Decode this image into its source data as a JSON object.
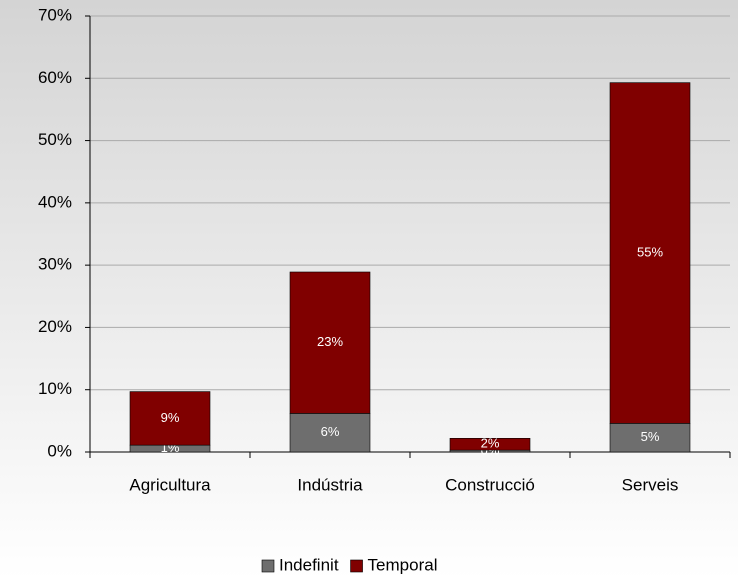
{
  "chart_data": {
    "type": "stacked_bar",
    "categories": [
      "Agricultura",
      "Indústria",
      "Construcció",
      "Serveis"
    ],
    "series": [
      {
        "name": "Indefinit",
        "color": "#6e6e6e",
        "values": [
          1.1,
          6.2,
          0.3,
          4.6
        ],
        "value_labels": [
          "1%",
          "6%",
          "0%",
          "5%"
        ]
      },
      {
        "name": "Temporal",
        "color": "#800000",
        "values": [
          8.6,
          22.7,
          1.9,
          54.7
        ],
        "value_labels": [
          "9%",
          "23%",
          "2%",
          "55%"
        ]
      }
    ],
    "ylim": [
      0,
      70
    ],
    "yticks": [
      {
        "value": 0,
        "label": "0%"
      },
      {
        "value": 10,
        "label": "10%"
      },
      {
        "value": 20,
        "label": "20%"
      },
      {
        "value": 30,
        "label": "30%"
      },
      {
        "value": 40,
        "label": "40%"
      },
      {
        "value": 50,
        "label": "50%"
      },
      {
        "value": 60,
        "label": "60%"
      },
      {
        "value": 70,
        "label": "70%"
      }
    ],
    "grid": true,
    "legend": "bottom"
  }
}
